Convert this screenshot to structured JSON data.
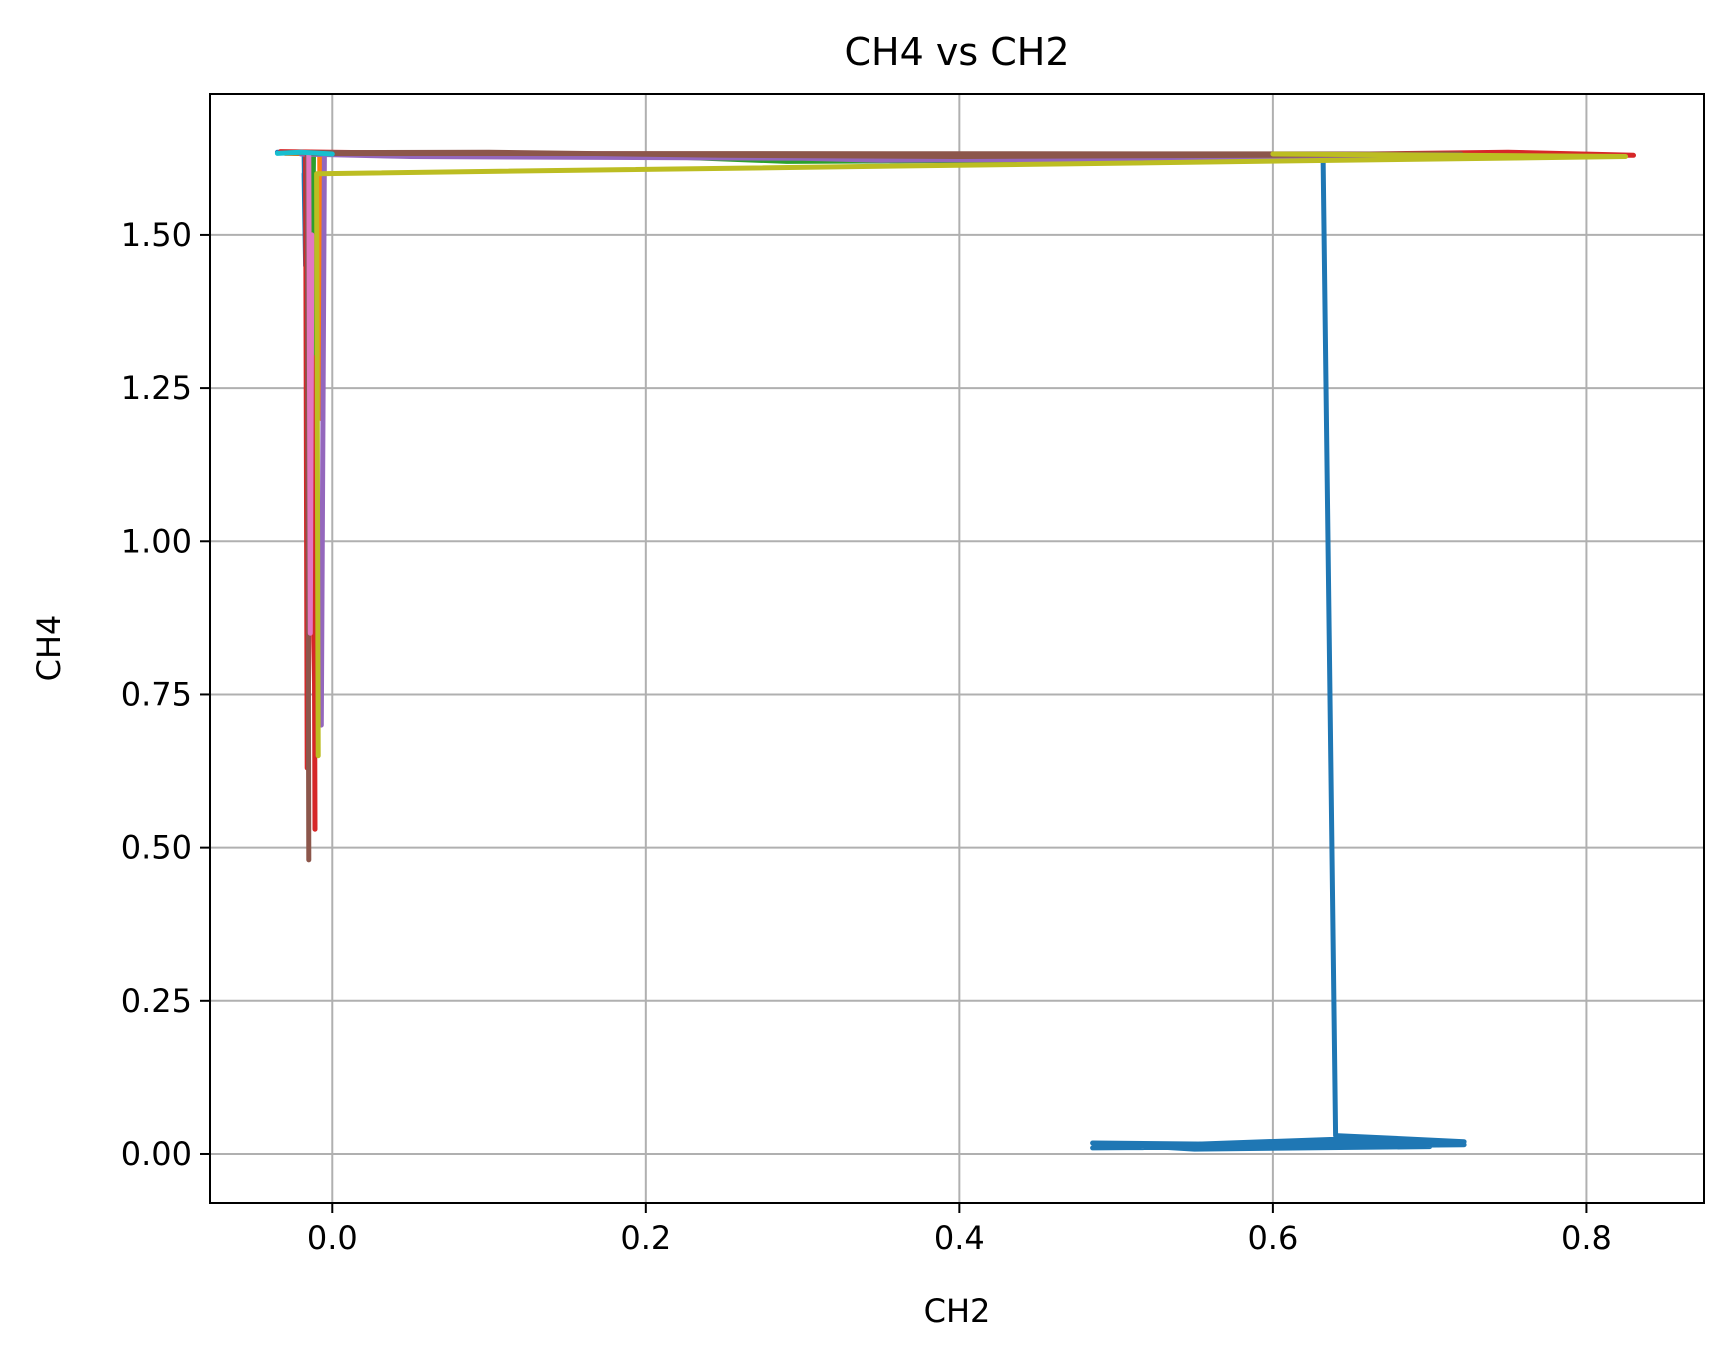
{
  "chart_data": {
    "type": "line",
    "title": "CH4 vs CH2",
    "xlabel": "CH2",
    "ylabel": "CH4",
    "xlim": [
      -0.078,
      0.875
    ],
    "ylim": [
      -0.08,
      1.73
    ],
    "xticks": [
      0.0,
      0.2,
      0.4,
      0.6,
      0.8
    ],
    "xtick_labels": [
      "0.0",
      "0.2",
      "0.4",
      "0.6",
      "0.8"
    ],
    "yticks": [
      0.0,
      0.25,
      0.5,
      0.75,
      1.0,
      1.25,
      1.5
    ],
    "ytick_labels": [
      "0.00",
      "0.25",
      "0.50",
      "0.75",
      "1.00",
      "1.25",
      "1.50"
    ],
    "grid": true,
    "legend": false,
    "series": [
      {
        "color": "#1f77b4",
        "x": [
          -0.035,
          0.0,
          0.3,
          0.5,
          0.65,
          0.75,
          0.82,
          0.632,
          0.64,
          0.722,
          0.6,
          0.485,
          0.55,
          0.7,
          0.65,
          0.485,
          0.722
        ],
        "y": [
          1.635,
          1.632,
          1.628,
          1.625,
          1.627,
          1.63,
          1.63,
          1.625,
          0.03,
          0.02,
          0.015,
          0.018,
          0.008,
          0.012,
          0.025,
          0.01,
          0.015
        ]
      },
      {
        "color": "#1f77b4",
        "x": [
          -0.018,
          -0.017,
          -0.018,
          -0.016
        ],
        "y": [
          1.635,
          1.45,
          1.6,
          1.5
        ]
      },
      {
        "color": "#ff7f0e",
        "x": [
          -0.03,
          0.1,
          0.3,
          0.55,
          0.78,
          0.82,
          -0.008,
          -0.007
        ],
        "y": [
          1.633,
          1.63,
          1.63,
          1.628,
          1.632,
          1.628,
          1.633,
          1.2
        ]
      },
      {
        "color": "#2ca02c",
        "x": [
          -0.025,
          0.2,
          0.29,
          0.45,
          0.7,
          0.81,
          -0.012,
          -0.014,
          -0.012
        ],
        "y": [
          1.634,
          1.629,
          1.62,
          1.622,
          1.626,
          1.63,
          1.632,
          1.05,
          1.38
        ]
      },
      {
        "color": "#d62728",
        "x": [
          -0.033,
          0.15,
          0.4,
          0.6,
          0.75,
          0.83,
          -0.017,
          -0.016,
          -0.012,
          -0.011
        ],
        "y": [
          1.636,
          1.63,
          1.626,
          1.63,
          1.635,
          1.63,
          1.633,
          0.63,
          1.3,
          0.53
        ]
      },
      {
        "color": "#9467bd",
        "x": [
          -0.02,
          0.05,
          0.3,
          0.35,
          0.55,
          0.68,
          -0.005,
          -0.007
        ],
        "y": [
          1.632,
          1.628,
          1.625,
          1.622,
          1.624,
          1.627,
          1.634,
          0.7
        ]
      },
      {
        "color": "#8c564b",
        "x": [
          -0.028,
          0.1,
          0.25,
          0.4,
          0.6,
          0.72,
          -0.016,
          -0.015
        ],
        "y": [
          1.634,
          1.635,
          1.63,
          1.628,
          1.63,
          1.632,
          1.633,
          0.48
        ]
      },
      {
        "color": "#e377c2",
        "x": [
          -0.015,
          -0.014,
          -0.013
        ],
        "y": [
          1.632,
          0.85,
          1.5
        ]
      },
      {
        "color": "#bcbd22",
        "x": [
          0.6,
          0.825,
          -0.01,
          -0.009
        ],
        "y": [
          1.632,
          1.628,
          1.6,
          0.65
        ]
      },
      {
        "color": "#17becf",
        "x": [
          -0.035,
          -0.02,
          0.0
        ],
        "y": [
          1.633,
          1.635,
          1.632
        ]
      }
    ]
  }
}
